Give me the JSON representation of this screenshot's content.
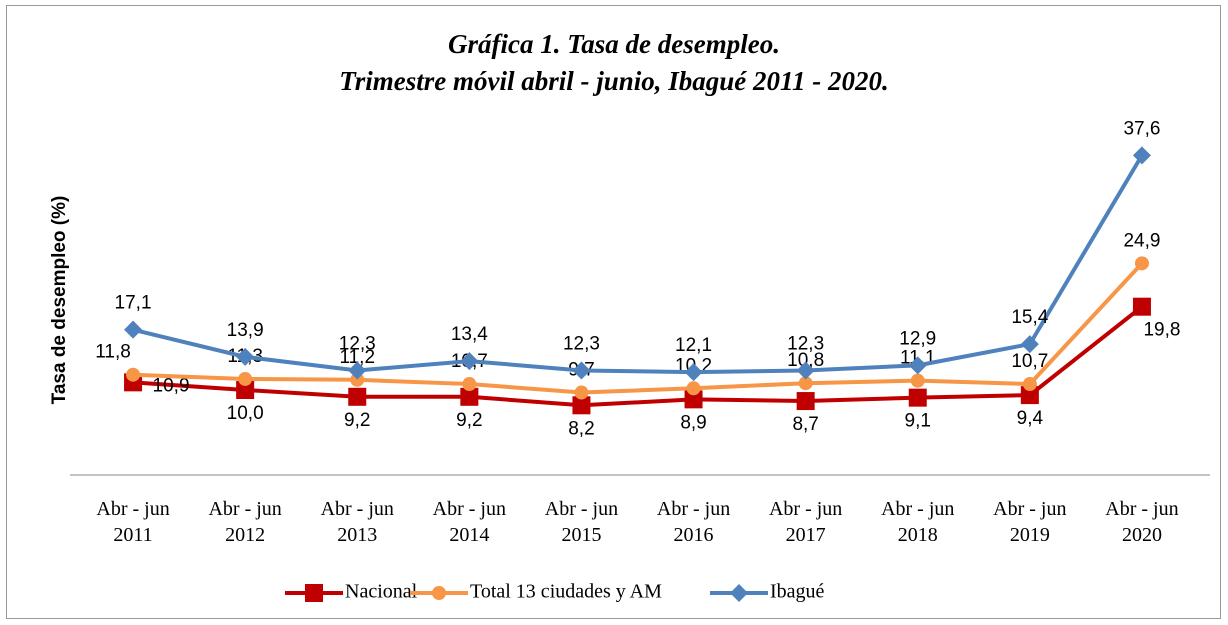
{
  "chart_data": {
    "type": "line",
    "title": "Gráfica 1. Tasa de desempleo.",
    "subtitle": "Trimestre móvil  abril - junio, Ibagué 2011 - 2020.",
    "y_label": "Tasa de desempleo (%)",
    "categories": [
      "Abr - jun\n2011",
      "Abr - jun\n2012",
      "Abr - jun\n2013",
      "Abr - jun\n2014",
      "Abr - jun\n2015",
      "Abr - jun\n2016",
      "Abr - jun\n2017",
      "Abr - jun\n2018",
      "Abr - jun\n2019",
      "Abr - jun\n2020"
    ],
    "ylim": [
      0,
      40
    ],
    "legend": "bottom",
    "series": [
      {
        "name": "Nacional",
        "color": "#c00000",
        "marker": "square",
        "values": [
          10.9,
          10.0,
          9.2,
          9.2,
          8.2,
          8.9,
          8.7,
          9.1,
          9.4,
          19.8
        ],
        "value_labels": [
          "10,9",
          "10,0",
          "9,2",
          "9,2",
          "8,2",
          "8,9",
          "8,7",
          "9,1",
          "9,4",
          "19,8"
        ]
      },
      {
        "name": "Total 13 ciudades y AM",
        "color": "#f79646",
        "marker": "circle",
        "values": [
          11.8,
          11.3,
          11.2,
          10.7,
          9.7,
          10.2,
          10.8,
          11.1,
          10.7,
          24.9
        ],
        "value_labels": [
          "11,8",
          "11,3",
          "11,2",
          "10,7",
          "9,7",
          "10,2",
          "10,8",
          "11,1",
          "10,7",
          "24,9"
        ]
      },
      {
        "name": "Ibagué",
        "color": "#4f81bd",
        "marker": "diamond",
        "values": [
          17.1,
          13.9,
          12.3,
          13.4,
          12.3,
          12.1,
          12.3,
          12.9,
          15.4,
          37.6
        ],
        "value_labels": [
          "17,1",
          "13,9",
          "12,3",
          "13,4",
          "12,3",
          "12,1",
          "12,3",
          "12,9",
          "15,4",
          "37,6"
        ]
      }
    ]
  }
}
